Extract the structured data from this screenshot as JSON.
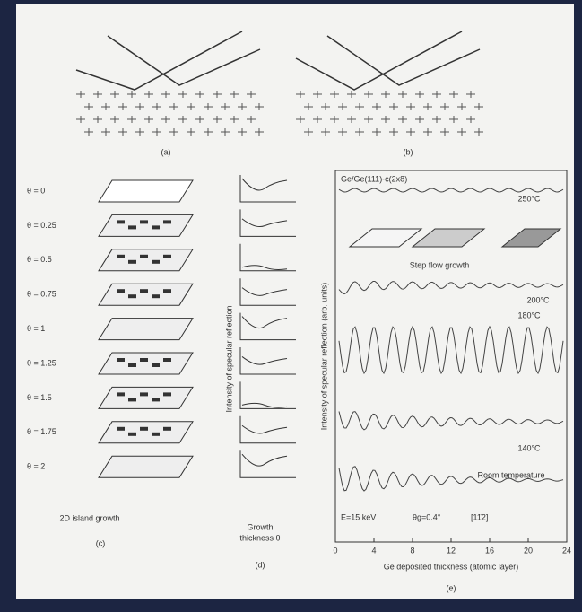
{
  "panels": {
    "a": {
      "label": "(a)"
    },
    "b": {
      "label": "(b)"
    },
    "c": {
      "label": "(c)",
      "coverage_labels": [
        "θ = 0",
        "θ = 0.25",
        "θ = 0.5",
        "θ = 0.75",
        "θ = 1",
        "θ = 1.25",
        "θ = 1.5",
        "θ = 1.75",
        "θ = 2"
      ],
      "caption": "2D island growth"
    },
    "d": {
      "label": "(d)",
      "y_label": "Intensity of specular reflection",
      "x_label": [
        "Growth",
        "thickness θ"
      ]
    },
    "e": {
      "label": "(e)",
      "sample": "Ge/Ge(111)-c(2x8)",
      "inset_caption": "Step flow growth",
      "temperatures": [
        "250°C",
        "200°C",
        "180°C",
        "140°C",
        "Room temperature"
      ],
      "conditions": [
        "E=15 keV",
        "θg=0.4°",
        "[11̄2]"
      ],
      "y_label": "Intensity of specular reflection (arb. units)",
      "x_label": "Ge deposited thickness (atomic layer)",
      "xlim": [
        0,
        24
      ],
      "xticks": [
        0,
        4,
        8,
        12,
        16,
        20,
        24
      ]
    }
  }
}
